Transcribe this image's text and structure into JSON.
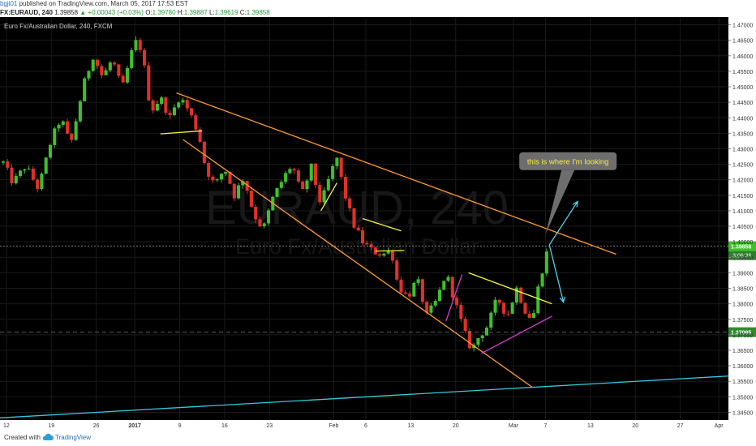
{
  "header": {
    "user": "bgji01",
    "published_text": "published on TradingView.com, March 05, 2017 17:53 EST",
    "symbol": "FX:EURAUD, 240",
    "last_price": "1.39858",
    "change_arrow": "▲",
    "change": "+0.00043 (+0.03%)",
    "o_label": "O:",
    "o_value": "1.39780",
    "h_label": "H:",
    "h_value": "1.39887",
    "l_label": "L:",
    "l_value": "1.39619",
    "c_label": "C:",
    "c_value": "1.39858"
  },
  "colors": {
    "background": "#000000",
    "up_candle": "#3fbf2a",
    "down_candle": "#e0302a",
    "channel": "#ff9a2e",
    "trend_support": "#37c9dc",
    "pattern_yellow": "#f5f23d",
    "pattern_magenta": "#d93bd3",
    "arrow": "#4fd3ea",
    "price_tag": "#3fbf2a",
    "grid": "#1a1a1a"
  },
  "chart_data": {
    "type": "candlestick",
    "title": "Euro Fx/Australian Dollar, 240, FXCM",
    "watermark_symbol": "EURAUD, 240",
    "watermark_name": "Euro Fx/Australian Dollar",
    "ylim": [
      1.3425,
      1.4725
    ],
    "y_ticks": [
      "1.47000",
      "1.46500",
      "1.46000",
      "1.45500",
      "1.45000",
      "1.44500",
      "1.44000",
      "1.43500",
      "1.43000",
      "1.42500",
      "1.42000",
      "1.41500",
      "1.41000",
      "1.40500",
      "1.40000",
      "1.39500",
      "1.39000",
      "1.38500",
      "1.38000",
      "1.37500",
      "1.37000",
      "1.36500",
      "1.36000",
      "1.35500",
      "1.35000",
      "1.34500"
    ],
    "x_ticks": [
      {
        "label": "12",
        "day": 0
      },
      {
        "label": "19",
        "day": 7
      },
      {
        "label": "26",
        "day": 14
      },
      {
        "label": "2017",
        "day": 20,
        "bold": true
      },
      {
        "label": "9",
        "day": 27
      },
      {
        "label": "16",
        "day": 34
      },
      {
        "label": "23",
        "day": 41
      },
      {
        "label": "Feb",
        "day": 51
      },
      {
        "label": "6",
        "day": 56
      },
      {
        "label": "13",
        "day": 63
      },
      {
        "label": "20",
        "day": 70
      },
      {
        "label": "Mar",
        "day": 79
      },
      {
        "label": "7",
        "day": 84
      },
      {
        "label": "13",
        "day": 91
      },
      {
        "label": "20",
        "day": 98
      },
      {
        "label": "27",
        "day": 105
      },
      {
        "label": "Apr",
        "day": 111
      }
    ],
    "x_range_days": [
      -1,
      112.5
    ],
    "price_path": [
      [
        -0.5,
        1.4255
      ],
      [
        1,
        1.419
      ],
      [
        3,
        1.4245
      ],
      [
        5,
        1.417
      ],
      [
        7,
        1.433
      ],
      [
        8.5,
        1.44
      ],
      [
        10,
        1.431
      ],
      [
        12,
        1.4505
      ],
      [
        13.5,
        1.46
      ],
      [
        15,
        1.453
      ],
      [
        16.5,
        1.459
      ],
      [
        18,
        1.449
      ],
      [
        19.5,
        1.461
      ],
      [
        20.5,
        1.466
      ],
      [
        21.5,
        1.456
      ],
      [
        22.5,
        1.442
      ],
      [
        24,
        1.4465
      ],
      [
        25.5,
        1.44
      ],
      [
        27,
        1.447
      ],
      [
        28.5,
        1.442
      ],
      [
        30,
        1.4345
      ],
      [
        31,
        1.424
      ],
      [
        32.5,
        1.418
      ],
      [
        34,
        1.424
      ],
      [
        35.5,
        1.415
      ],
      [
        37,
        1.421
      ],
      [
        38.5,
        1.409
      ],
      [
        40,
        1.404
      ],
      [
        41.5,
        1.414
      ],
      [
        43,
        1.42
      ],
      [
        44.5,
        1.425
      ],
      [
        46,
        1.415
      ],
      [
        47.5,
        1.424
      ],
      [
        49,
        1.412
      ],
      [
        50.5,
        1.422
      ],
      [
        51.5,
        1.427
      ],
      [
        52.5,
        1.417
      ],
      [
        54,
        1.406
      ],
      [
        55.5,
        1.4
      ],
      [
        57,
        1.397
      ],
      [
        58.5,
        1.396
      ],
      [
        60,
        1.397
      ],
      [
        61,
        1.386
      ],
      [
        62.5,
        1.382
      ],
      [
        64,
        1.388
      ],
      [
        65.5,
        1.376
      ],
      [
        67,
        1.381
      ],
      [
        68.5,
        1.39
      ],
      [
        70,
        1.38
      ],
      [
        71.5,
        1.37
      ],
      [
        72.5,
        1.365
      ],
      [
        73.5,
        1.369
      ],
      [
        75,
        1.373
      ],
      [
        76.5,
        1.382
      ],
      [
        78,
        1.376
      ],
      [
        79.5,
        1.385
      ],
      [
        81,
        1.377
      ],
      [
        82,
        1.375
      ],
      [
        83,
        1.387
      ],
      [
        84,
        1.395
      ],
      [
        84.5,
        1.399
      ]
    ],
    "price_lines": [
      {
        "label": "1.39858",
        "value": 1.39858,
        "sublabel": "3:06:36",
        "color": "#3fbf2a"
      },
      {
        "label": "1.37085",
        "value": 1.37085,
        "color": "#2e8b2e"
      }
    ],
    "lines": [
      {
        "role": "channel-upper",
        "color": "#ff9a2e",
        "points": [
          [
            26.5,
            1.448
          ],
          [
            95,
            1.396
          ]
        ]
      },
      {
        "role": "channel-lower",
        "color": "#ff9a2e",
        "points": [
          [
            27.5,
            1.433
          ],
          [
            82,
            1.353
          ]
        ]
      },
      {
        "role": "long-term-support",
        "color": "#37c9dc",
        "points": [
          [
            -1,
            1.3432
          ],
          [
            112.5,
            1.3567
          ]
        ]
      },
      {
        "role": "flag-support",
        "color": "#f5f23d",
        "points": [
          [
            24,
            1.4348
          ],
          [
            30.5,
            1.4358
          ]
        ]
      },
      {
        "role": "wedge-upper",
        "color": "#f5f23d",
        "points": [
          [
            72,
            1.39
          ],
          [
            85,
            1.38
          ]
        ]
      },
      {
        "role": "consolidation-top",
        "color": "#f5f23d",
        "points": [
          [
            55.5,
            1.4075
          ],
          [
            61.5,
            1.4035
          ]
        ]
      },
      {
        "role": "consolidation-bottom",
        "color": "#f5f23d",
        "points": [
          [
            57.5,
            1.397
          ],
          [
            62,
            1.3972
          ]
        ]
      },
      {
        "role": "flag-pole",
        "color": "#f5f23d",
        "points": [
          [
            49,
            1.41
          ],
          [
            51.5,
            1.419
          ]
        ]
      },
      {
        "role": "wedge-lower",
        "color": "#d93bd3",
        "points": [
          [
            74,
            1.364
          ],
          [
            85,
            1.376
          ]
        ]
      },
      {
        "role": "pole-magenta",
        "color": "#d93bd3",
        "points": [
          [
            68.5,
            1.3745
          ],
          [
            71,
            1.3895
          ]
        ]
      }
    ],
    "arrows": [
      {
        "from": [
          84.6,
          1.399
        ],
        "to": [
          89,
          1.413
        ]
      },
      {
        "from": [
          84.6,
          1.399
        ],
        "to": [
          86.8,
          1.3805
        ]
      }
    ],
    "annotation": {
      "text": "this is where I'm looking",
      "anchor": [
        84,
        1.4025
      ],
      "center_day": 87.5,
      "center_value": 1.426
    }
  },
  "footer": {
    "created_with": "Created with",
    "brand": "TradingView"
  }
}
